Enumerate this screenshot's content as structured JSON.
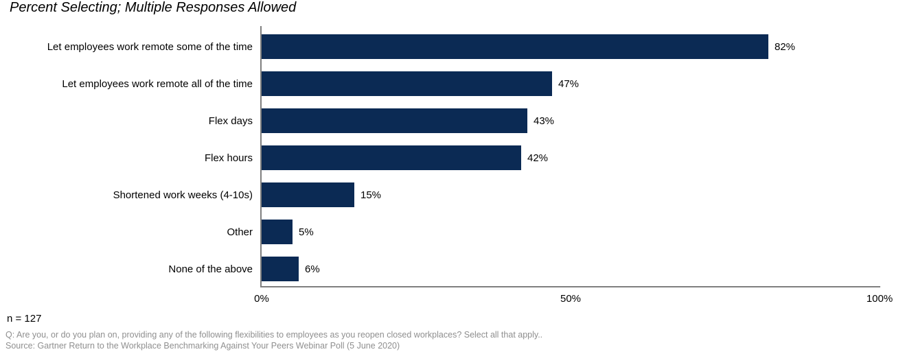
{
  "title": "Percent Selecting; Multiple Responses Allowed",
  "chart_data": {
    "type": "bar",
    "orientation": "horizontal",
    "title": "Percent Selecting; Multiple Responses Allowed",
    "categories": [
      "Let employees work remote some of the time",
      "Let employees work remote all of the time",
      "Flex days",
      "Flex hours",
      "Shortened work weeks (4-10s)",
      "Other",
      "None of the above"
    ],
    "values": [
      82,
      47,
      43,
      42,
      15,
      5,
      6
    ],
    "value_labels": [
      "82%",
      "47%",
      "43%",
      "42%",
      "15%",
      "5%",
      "6%"
    ],
    "xlim": [
      0,
      100
    ],
    "x_ticks": [
      {
        "label": "0%",
        "position": 0
      },
      {
        "label": "50%",
        "position": 50
      },
      {
        "label": "100%",
        "position": 100
      }
    ],
    "grid": false,
    "legend": false,
    "bar_color": "#0B2A54",
    "axis_color": "#7F7F7F"
  },
  "footer": {
    "n_label": "n = 127",
    "question": "Q: Are you, or do you plan on, providing any of the following flexibilities to employees as you reopen closed workplaces? Select all that apply..",
    "source": "Source: Gartner Return to the Workplace Benchmarking Against Your Peers Webinar Poll (5 June 2020)"
  }
}
